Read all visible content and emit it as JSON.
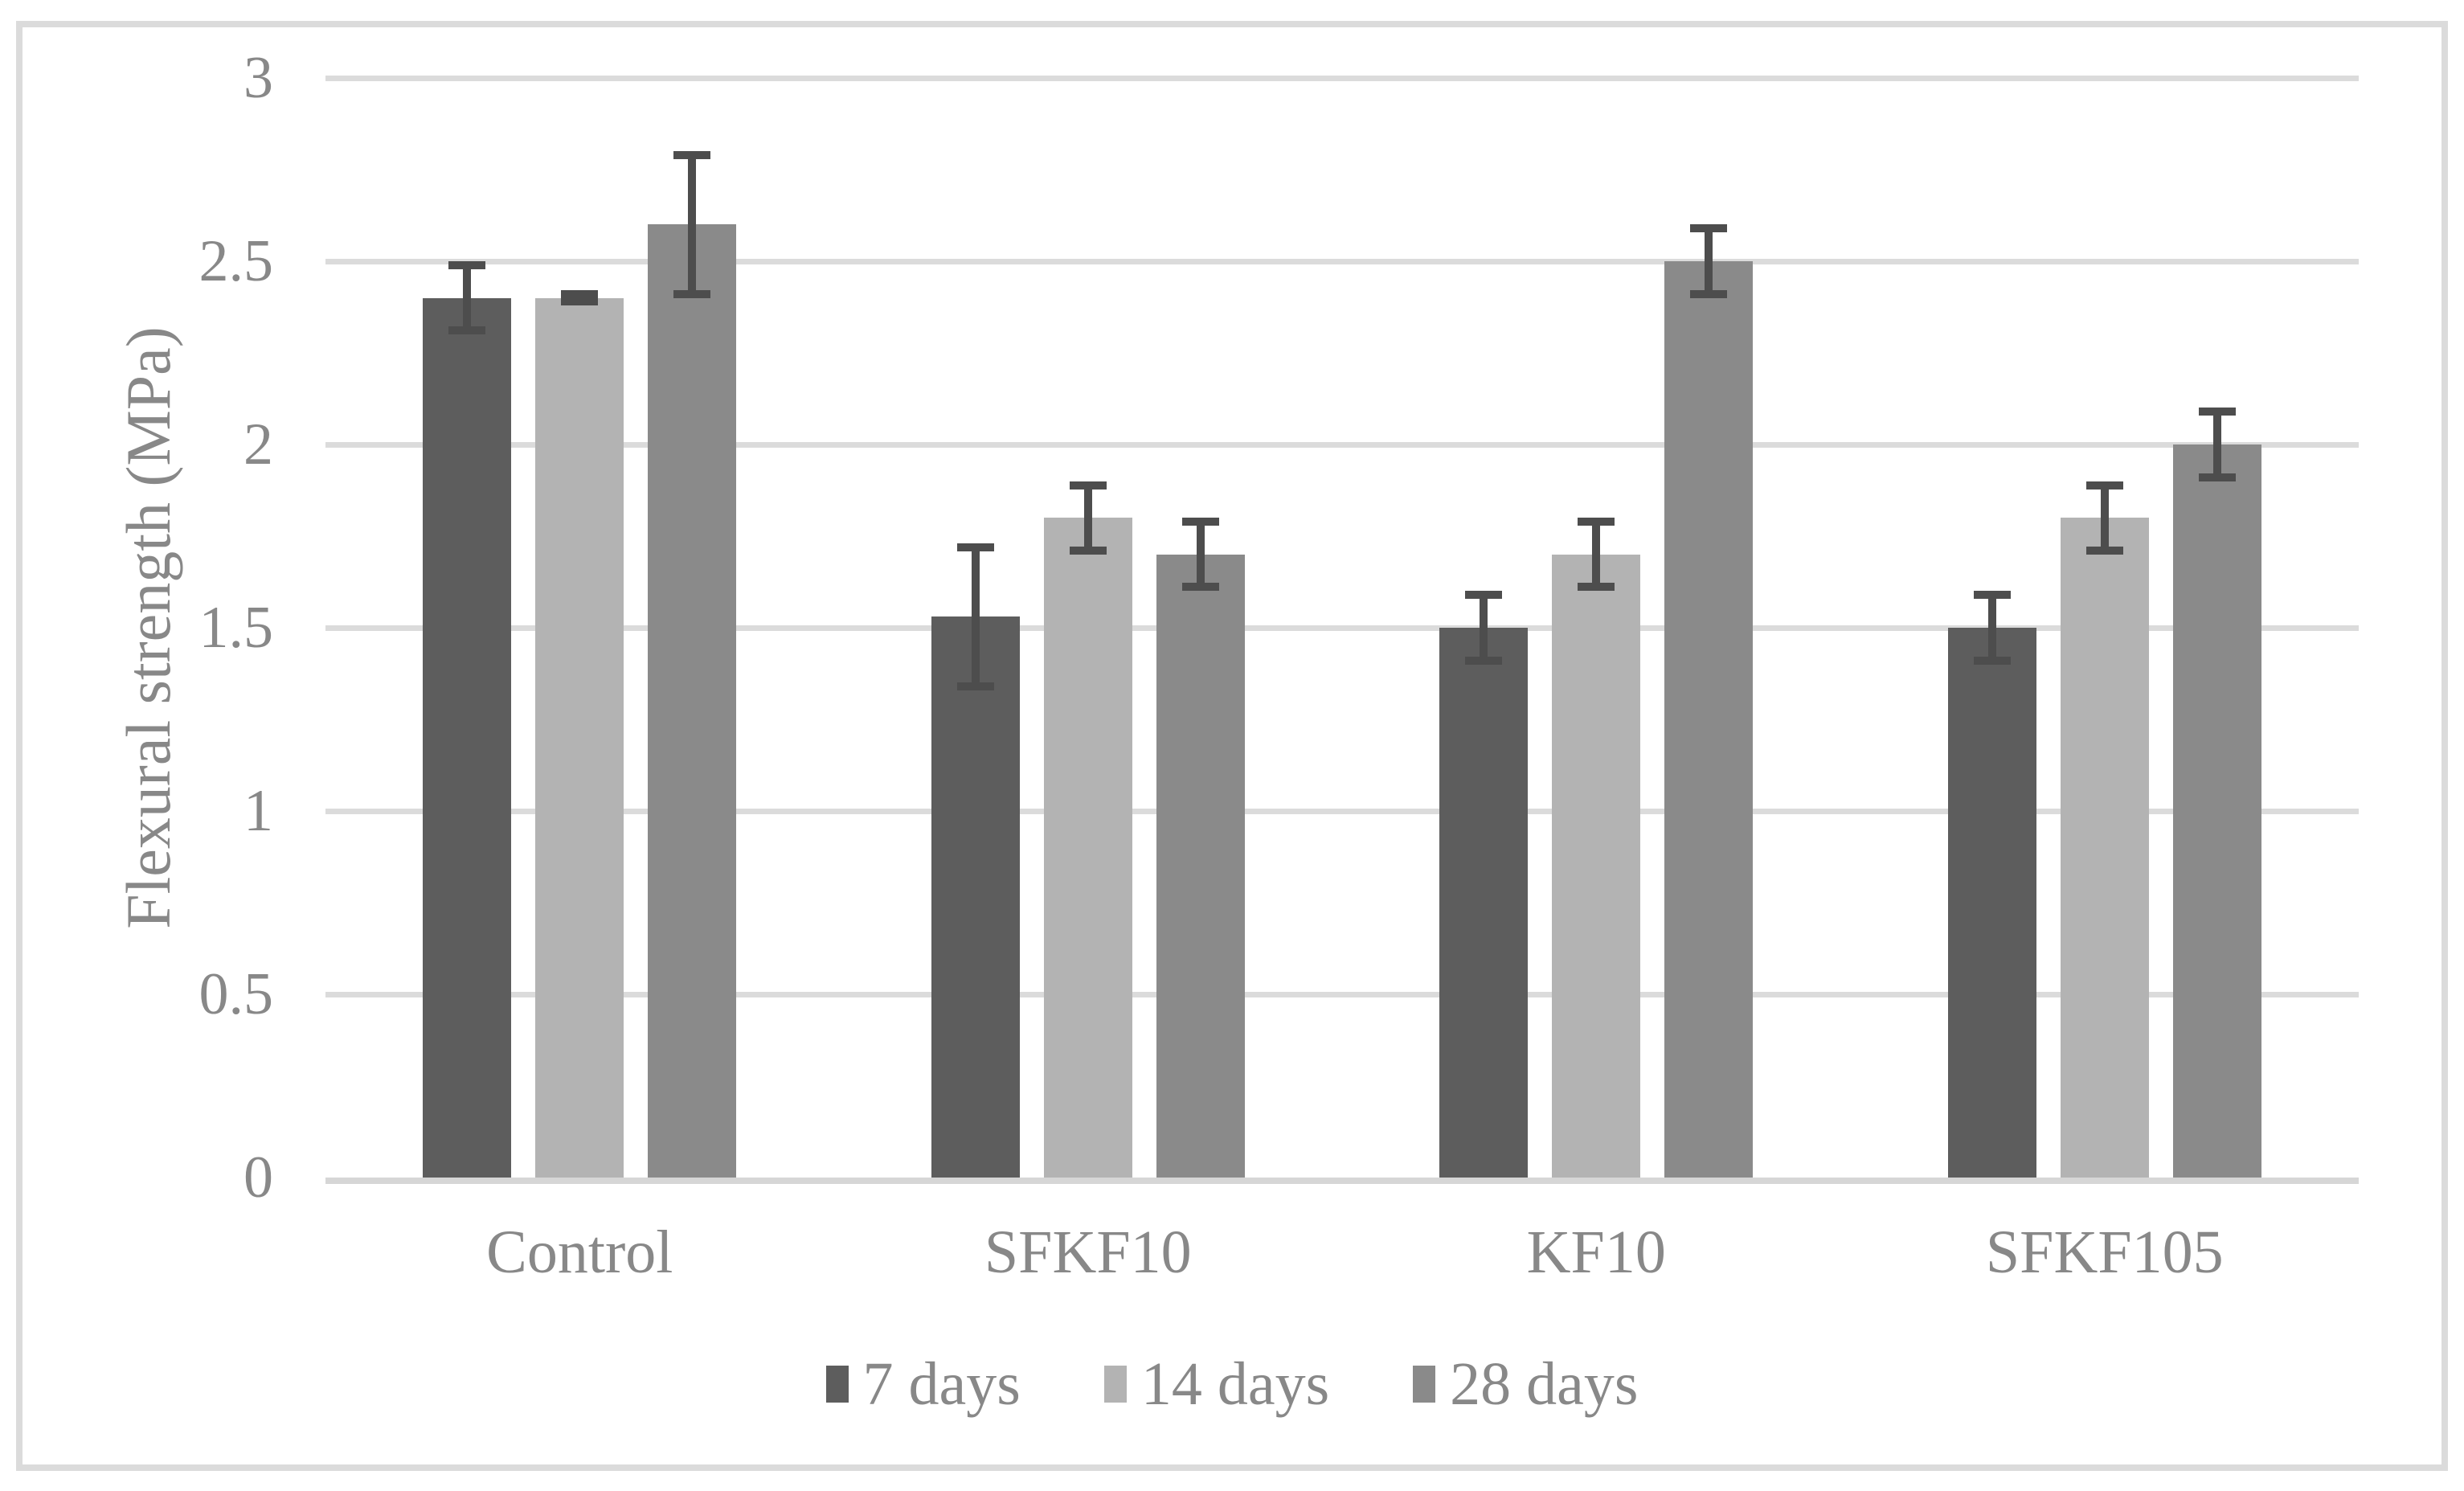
{
  "figure": {
    "background": "#FFFFFF",
    "border_color": "#DBDBDB"
  },
  "chart_data": {
    "type": "bar",
    "title": "",
    "xlabel": "",
    "ylabel": "Flexural strength (MPa)",
    "ylim": [
      0,
      3
    ],
    "grid": true,
    "legend_position": "bottom",
    "yticks": [
      {
        "value": 3,
        "label": "3"
      },
      {
        "value": 2.5,
        "label": "2.5"
      },
      {
        "value": 2,
        "label": "2"
      },
      {
        "value": 1.5,
        "label": "1.5"
      },
      {
        "value": 1,
        "label": "1"
      },
      {
        "value": 0.5,
        "label": "0.5"
      },
      {
        "value": 0,
        "label": "0"
      }
    ],
    "categories": [
      "Control",
      "SFKF10",
      "KF10",
      "SFKF105"
    ],
    "series": [
      {
        "name": "7 days",
        "color": "#5D5D5D",
        "values": [
          2.4,
          1.53,
          1.5,
          1.5
        ],
        "errors": [
          0.1,
          0.2,
          0.1,
          0.1
        ]
      },
      {
        "name": "14 days",
        "color": "#B3B3B3",
        "values": [
          2.4,
          1.8,
          1.7,
          1.8
        ],
        "errors": [
          0.02,
          0.1,
          0.1,
          0.1
        ]
      },
      {
        "name": "28 days",
        "color": "#8A8A8A",
        "values": [
          2.6,
          1.7,
          2.5,
          2.0
        ],
        "errors": [
          0.2,
          0.1,
          0.1,
          0.1
        ]
      }
    ],
    "colors": {
      "error_bar": "#4D4D4D",
      "gridline": "#DBDBDB",
      "axis_line": "#D6D6D6",
      "text": "#888888"
    }
  }
}
